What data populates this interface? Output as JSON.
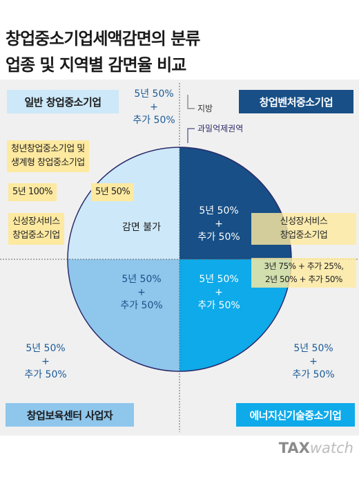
{
  "title": {
    "line1": "창업중소기업세액감면의 분류",
    "line2": "업종 및 지역별 감면율 비교"
  },
  "quadrants": {
    "top_left": "일반 창업중소기업",
    "top_right": "창업벤처중소기업",
    "bottom_left": "창업보육센터 사업자",
    "bottom_right": "에너지신기술중소기업"
  },
  "legend": {
    "region": "지방",
    "metro": "과밀억제권역"
  },
  "rates": {
    "general_region": [
      "5년 50%",
      "+",
      "추가 50%"
    ],
    "general_metro": "감면 불가",
    "venture_metro": [
      "5년 50%",
      "+",
      "추가 50%"
    ],
    "bosuk_metro": [
      "5년 50%",
      "+",
      "추가 50%"
    ],
    "bosuk_region": [
      "5년 50%",
      "+",
      "추가 50%"
    ],
    "energy_metro": [
      "5년 50%",
      "+",
      "추가 50%"
    ],
    "energy_region": [
      "5년 50%",
      "+",
      "추가 50%"
    ]
  },
  "special": {
    "youth_label": [
      "청년창업중소기업 및",
      "생계형 창업중소기업"
    ],
    "youth_region_rate": "5년 100%",
    "youth_metro_rate": "5년 50%",
    "service_left": [
      "신성장서비스",
      "창업중소기업"
    ],
    "service_right": [
      "신성장서비스",
      "창업중소기업"
    ],
    "service_right_rate1": "3년 75% + 추가 25%,",
    "service_right_rate2": "2년 50% + 추가 50%"
  },
  "logo": {
    "part1": "TAX",
    "part2": "watch"
  },
  "colors": {
    "general": "#cde8f8",
    "venture": "#174f86",
    "bosuk": "#8fc6ec",
    "energy": "#0eaaea",
    "highlight": "#fde9a0"
  }
}
